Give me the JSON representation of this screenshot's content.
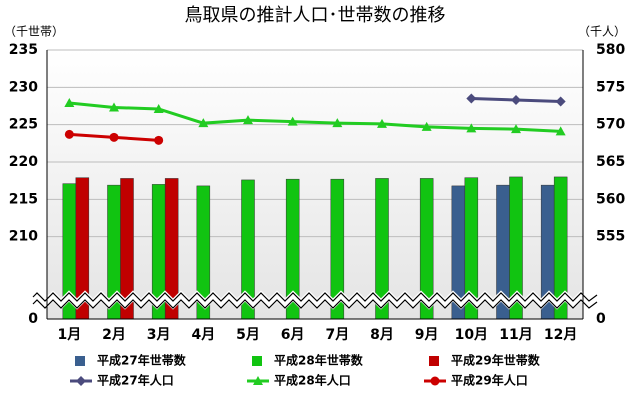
{
  "chart_data": {
    "type": "combo",
    "title": "鳥取県の推計人口･世帯数の推移",
    "y_label": "（千世帯）",
    "y2_label": "（千人）",
    "categories": [
      "1月",
      "2月",
      "3月",
      "4月",
      "5月",
      "6月",
      "7月",
      "8月",
      "9月",
      "10月",
      "11月",
      "12月"
    ],
    "ylim": [
      0,
      235
    ],
    "y_break": [
      0,
      205
    ],
    "yticks": [
      0,
      210,
      215,
      220,
      225,
      230,
      235
    ],
    "y2lim": [
      0,
      580
    ],
    "y2_break": [
      0,
      550
    ],
    "y2ticks": [
      0,
      555,
      560,
      565,
      570,
      575,
      580
    ],
    "grid": true,
    "series": [
      {
        "name": "平成27年世帯数",
        "kind": "bar",
        "color": "#3a5f8f",
        "values": [
          null,
          null,
          null,
          null,
          null,
          null,
          null,
          null,
          null,
          216.8,
          216.9,
          216.9
        ]
      },
      {
        "name": "平成28年世帯数",
        "kind": "bar",
        "color": "#11c411",
        "values": [
          217.1,
          216.9,
          217.0,
          216.8,
          217.6,
          217.7,
          217.7,
          217.8,
          217.8,
          217.9,
          218.0,
          218.0
        ]
      },
      {
        "name": "平成29年世帯数",
        "kind": "bar",
        "color": "#c00000",
        "values": [
          217.9,
          217.8,
          217.8,
          null,
          null,
          null,
          null,
          null,
          null,
          null,
          null,
          null
        ]
      },
      {
        "name": "平成27年人口",
        "kind": "line",
        "axis": "y2",
        "marker": "diamond",
        "color": "#4b4b7d",
        "values": [
          null,
          null,
          null,
          null,
          null,
          null,
          null,
          null,
          null,
          573.5,
          573.3,
          573.1
        ]
      },
      {
        "name": "平成28年人口",
        "kind": "line",
        "axis": "y2",
        "marker": "triangle",
        "color": "#22cc22",
        "values": [
          572.9,
          572.3,
          572.1,
          570.2,
          570.6,
          570.4,
          570.2,
          570.1,
          569.7,
          569.5,
          569.4,
          569.1
        ]
      },
      {
        "name": "平成29年人口",
        "kind": "line",
        "axis": "y2",
        "marker": "circle",
        "color": "#cc0000",
        "values": [
          568.7,
          568.3,
          567.9,
          null,
          null,
          null,
          null,
          null,
          null,
          null,
          null,
          null
        ]
      }
    ]
  }
}
